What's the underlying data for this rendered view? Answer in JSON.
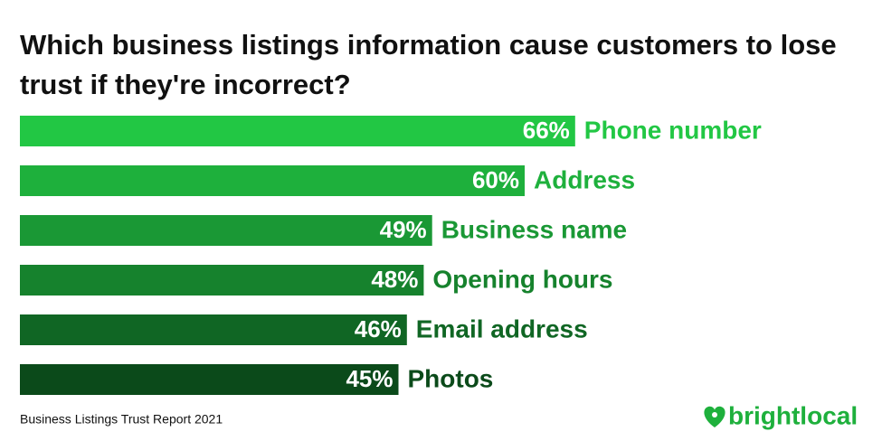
{
  "chart_data": {
    "type": "hbar",
    "title": "Which business listings information cause customers to lose trust if they're incorrect?",
    "categories": [
      "Phone number",
      "Address",
      "Business name",
      "Opening hours",
      "Email address",
      "Photos"
    ],
    "values": [
      66,
      60,
      49,
      48,
      46,
      45
    ],
    "value_labels": [
      "66%",
      "60%",
      "49%",
      "48%",
      "46%",
      "45%"
    ],
    "colors": [
      "#22c744",
      "#1eb03c",
      "#1a9835",
      "#16822d",
      "#106624",
      "#0b4a1a"
    ],
    "source": "Business Listings Trust Report 2021",
    "brand": "brightlocal"
  }
}
